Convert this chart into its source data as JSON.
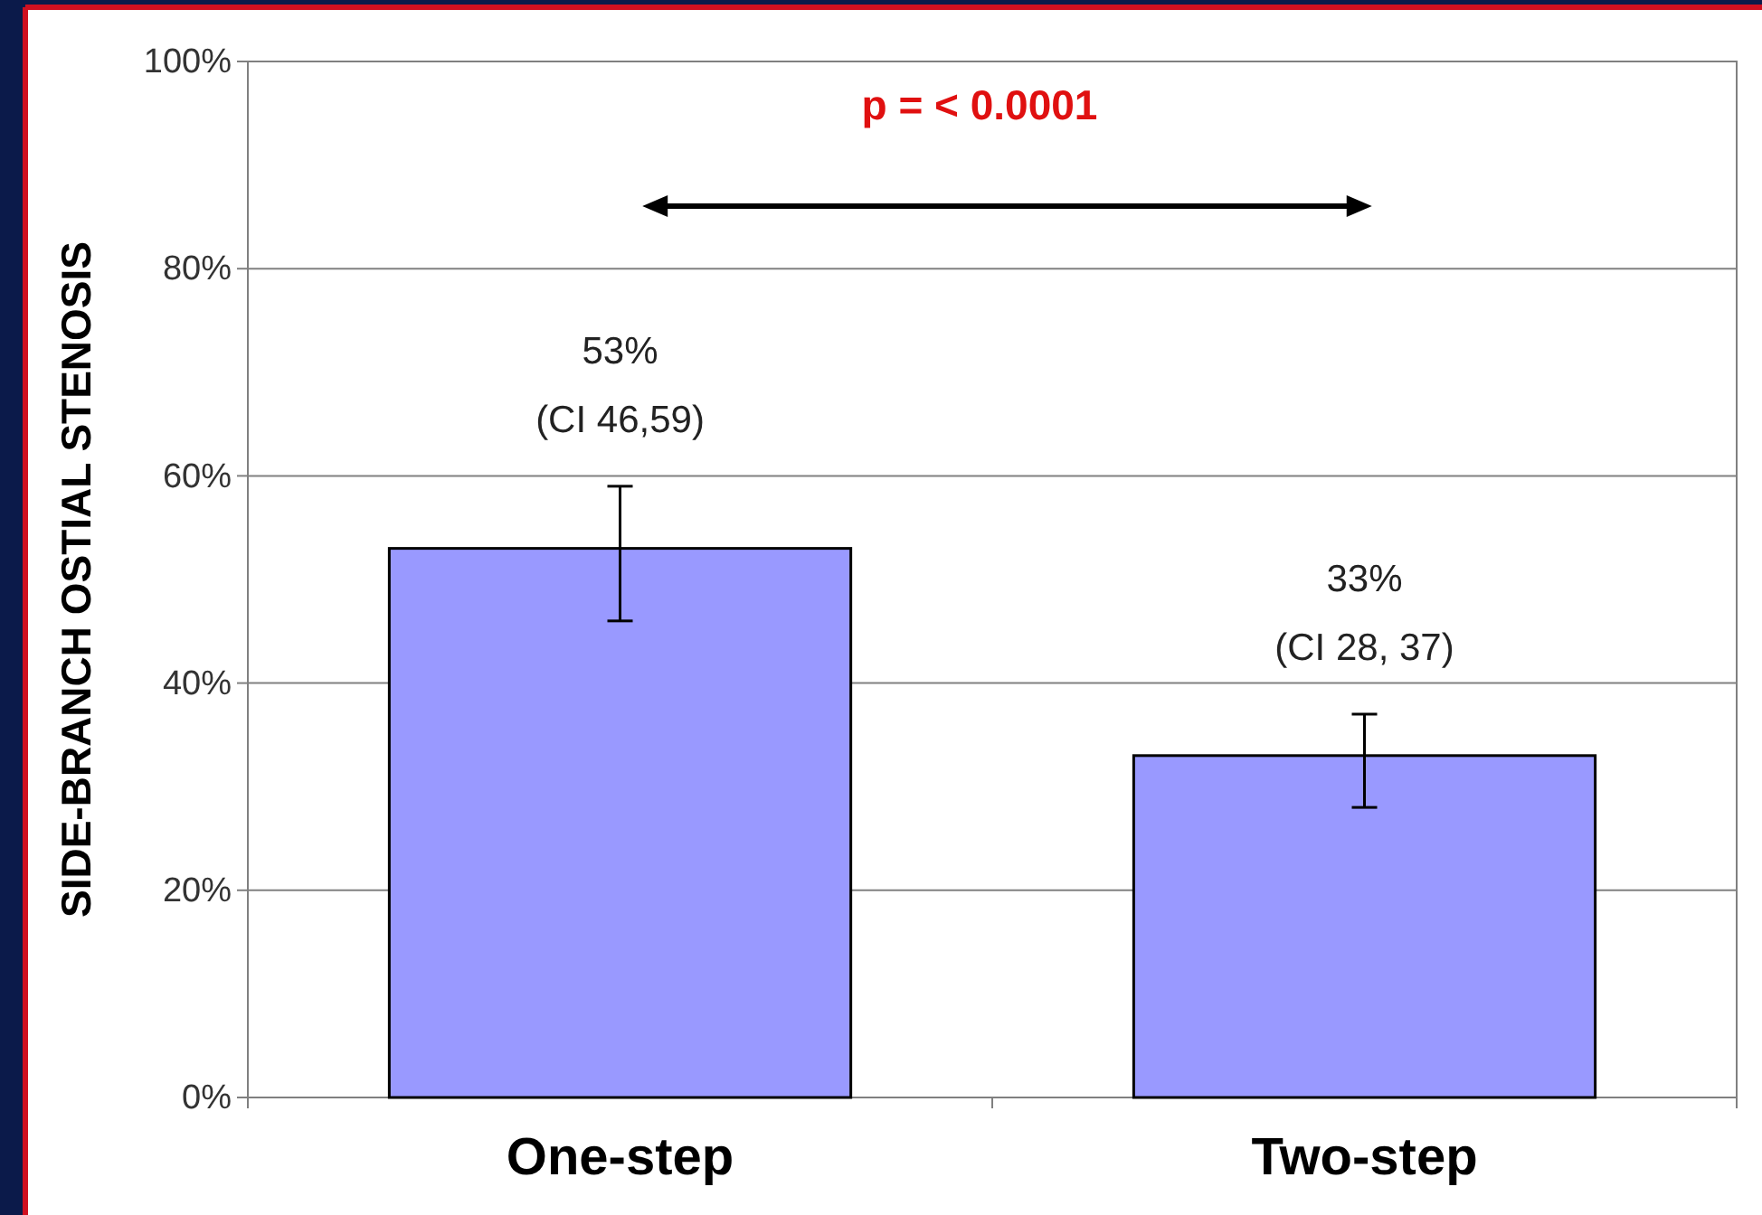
{
  "chart_data": {
    "type": "bar",
    "ylabel": "SIDE-BRANCH OSTIAL STENOSIS",
    "categories": [
      "One-step",
      "Two-step"
    ],
    "values": [
      53,
      33
    ],
    "color": "#9999ff",
    "errors": [
      [
        46,
        59
      ],
      [
        28,
        37
      ]
    ],
    "value_labels": [
      "53%\n(CI 46,59)",
      "33%\n(CI 28, 37)"
    ],
    "ylim": [
      0,
      100
    ],
    "yticks": [
      {
        "value": 0,
        "label": "0%"
      },
      {
        "value": 20,
        "label": "20%"
      },
      {
        "value": 40,
        "label": "40%"
      },
      {
        "value": 60,
        "label": "60%"
      },
      {
        "value": 80,
        "label": "80%"
      },
      {
        "value": 100,
        "label": "100%"
      }
    ],
    "grid": "y",
    "annotations": [
      "p = < 0.0001"
    ]
  }
}
